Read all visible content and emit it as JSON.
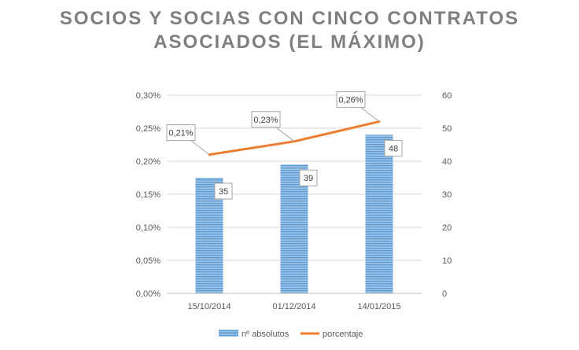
{
  "chart_data": {
    "type": "bar+line",
    "title_lines": [
      "SOCIOS Y SOCIAS CON CINCO CONTRATOS",
      "ASOCIADOS (EL MÁXIMO)"
    ],
    "categories": [
      "15/10/2014",
      "01/12/2014",
      "14/01/2015"
    ],
    "series": [
      {
        "name": "nº absolutos",
        "type": "bar",
        "axis": "right",
        "values": [
          35,
          39,
          48
        ],
        "labels": [
          "35",
          "39",
          "48"
        ],
        "color": "#5b9bd5"
      },
      {
        "name": "porcentaje",
        "type": "line",
        "axis": "left",
        "values": [
          0.21,
          0.23,
          0.26
        ],
        "labels": [
          "0,21%",
          "0,23%",
          "0,26%"
        ],
        "color": "#ed7d31"
      }
    ],
    "y_left": {
      "range": [
        0,
        0.3
      ],
      "ticks": [
        0,
        0.05,
        0.1,
        0.15,
        0.2,
        0.25,
        0.3
      ],
      "tick_labels": [
        "0,00%",
        "0,05%",
        "0,10%",
        "0,15%",
        "0,20%",
        "0,25%",
        "0,30%"
      ]
    },
    "y_right": {
      "range": [
        0,
        60
      ],
      "ticks": [
        0,
        10,
        20,
        30,
        40,
        50,
        60
      ],
      "tick_labels": [
        "0",
        "10",
        "20",
        "30",
        "40",
        "50",
        "60"
      ]
    },
    "grid": true,
    "legend_position": "bottom"
  }
}
